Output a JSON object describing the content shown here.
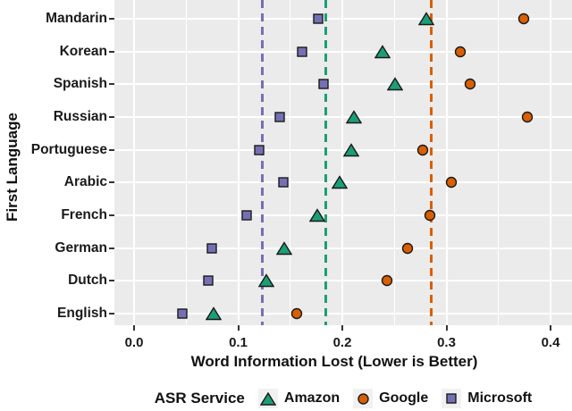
{
  "chart_data": {
    "type": "scatter",
    "title": "",
    "xlabel": "Word Information Lost (Lower is Better)",
    "ylabel": "First Language",
    "categories": [
      "Mandarin",
      "Korean",
      "Spanish",
      "Russian",
      "Portuguese",
      "Arabic",
      "French",
      "German",
      "Dutch",
      "English"
    ],
    "x_tick_values": [
      0.0,
      0.1,
      0.2,
      0.3,
      0.4
    ],
    "x_tick_labels": [
      "0.0",
      "0.1",
      "0.2",
      "0.3",
      "0.4"
    ],
    "x_minor_ticks": [
      0.05,
      0.15,
      0.25,
      0.35
    ],
    "xlim": [
      -0.019,
      0.421
    ],
    "grid": true,
    "legend": {
      "title": "ASR Service",
      "position": "bottom"
    },
    "panel_background": "#EBEBEB",
    "gridline_color": "#FFFFFF",
    "series": [
      {
        "name": "Amazon",
        "marker": "triangle",
        "color": "#1B9E77",
        "values": [
          0.281,
          0.239,
          0.251,
          0.211,
          0.209,
          0.197,
          0.176,
          0.144,
          0.127,
          0.076
        ],
        "mean_line": 0.184
      },
      {
        "name": "Google",
        "marker": "circle",
        "color": "#D95F02",
        "values": [
          0.374,
          0.313,
          0.323,
          0.378,
          0.277,
          0.305,
          0.284,
          0.263,
          0.243,
          0.156
        ],
        "mean_line": 0.285
      },
      {
        "name": "Microsoft",
        "marker": "square",
        "color": "#7570B3",
        "values": [
          0.177,
          0.161,
          0.182,
          0.14,
          0.12,
          0.143,
          0.108,
          0.075,
          0.071,
          0.046
        ],
        "mean_line": 0.123
      }
    ]
  }
}
